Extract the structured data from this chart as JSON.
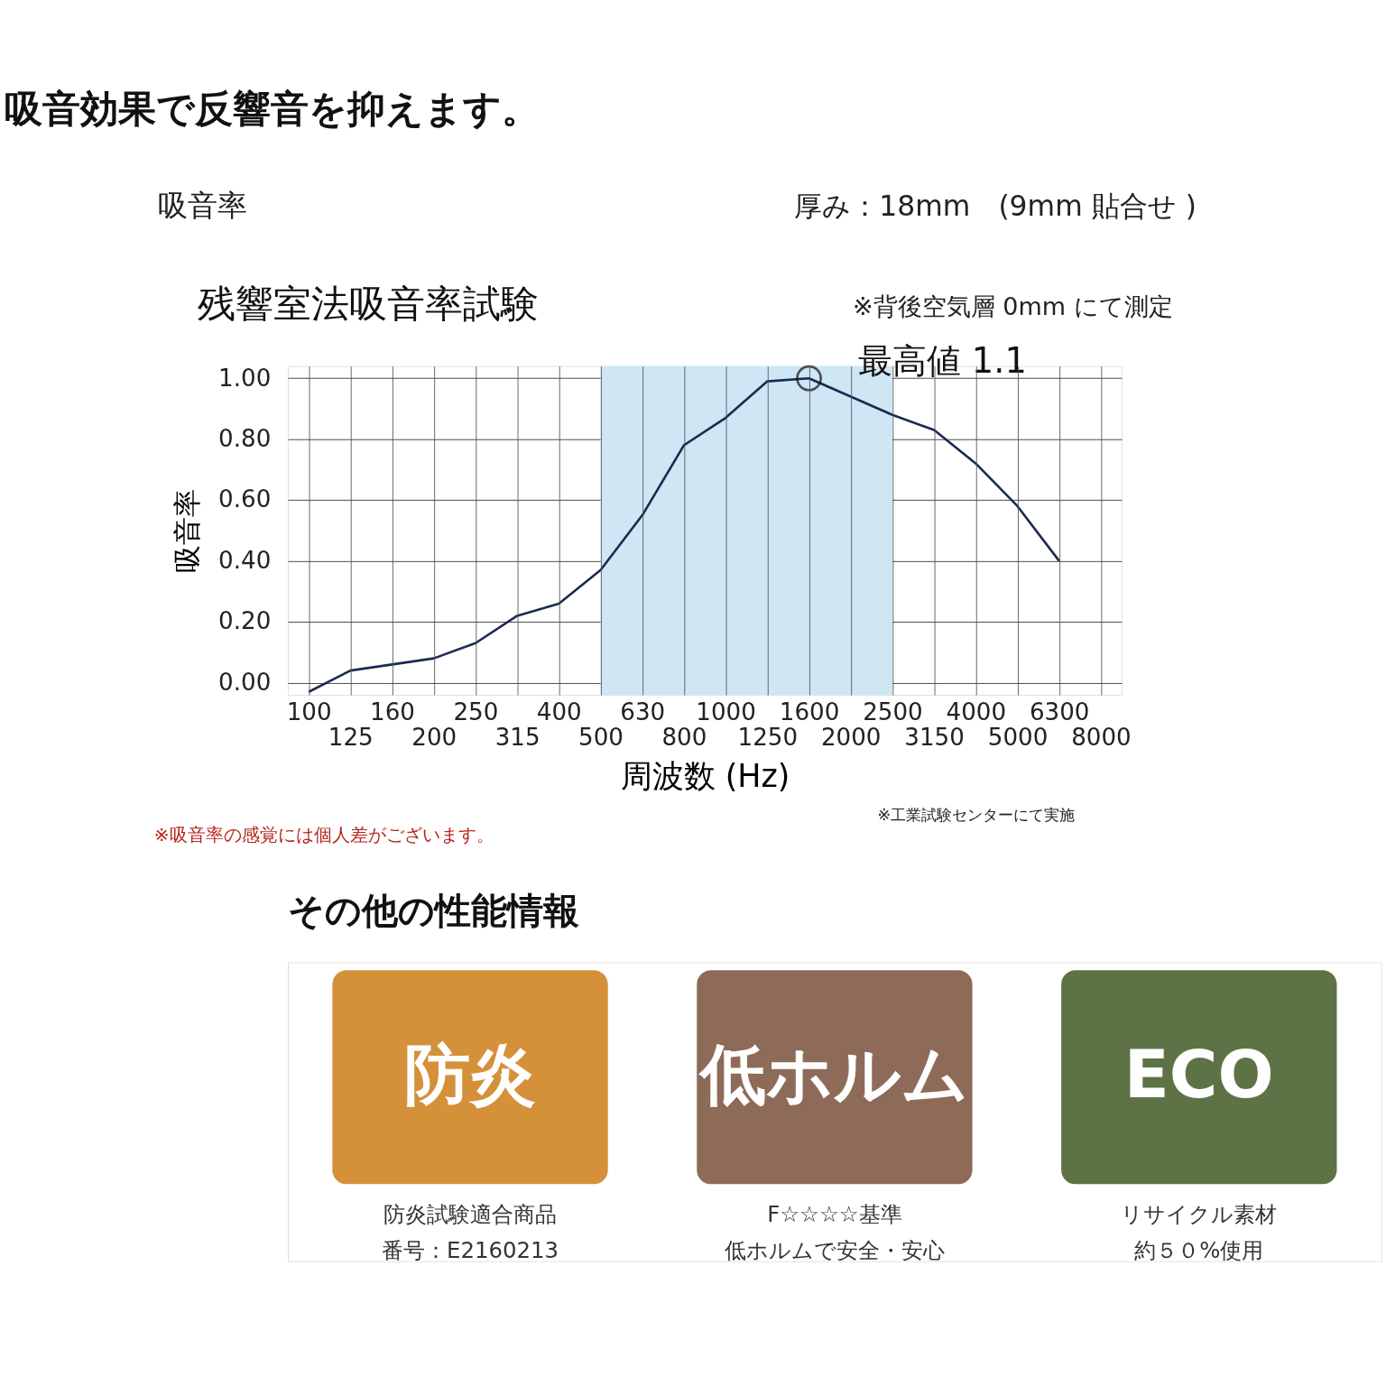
{
  "chart_data": [
    {
      "type": "line",
      "title": "吸音効果で反響音を抑えます。",
      "subtitle": "残響室法吸音率試験",
      "xlabel": "周波数 (Hz)",
      "ylabel": "吸音率",
      "categories": [
        "100",
        "125",
        "160",
        "200",
        "250",
        "315",
        "400",
        "500",
        "630",
        "800",
        "1000",
        "1250",
        "1600",
        "2000",
        "2500",
        "3150",
        "4000",
        "5000",
        "6300",
        "8000"
      ],
      "series": [
        {
          "color": "#1b2a52",
          "values": [
            -0.03,
            0.04,
            0.06,
            0.08,
            0.13,
            0.22,
            0.26,
            0.37,
            0.55,
            0.78,
            0.87,
            0.99,
            1.0,
            0.94,
            0.88,
            0.83,
            0.72,
            0.58,
            0.4,
            null
          ]
        }
      ],
      "ylim": [
        -0.04,
        1.04
      ],
      "yticks": [
        {
          "value": 0,
          "label": "0.00"
        },
        {
          "value": 0.2,
          "label": "0.20"
        },
        {
          "value": 0.4,
          "label": "0.40"
        },
        {
          "value": 0.6,
          "label": "0.60"
        },
        {
          "value": 0.8,
          "label": "0.80"
        },
        {
          "value": 1,
          "label": "1.00"
        }
      ],
      "bands": [
        {
          "axis": "x",
          "from": "500",
          "to": "2500",
          "color": "#cfe6f5"
        }
      ],
      "grid": true,
      "marker": "none",
      "line_style": "solid",
      "annotations": [
        "吸音率",
        "厚み：18mm　(9mm 貼合せ )",
        "※背後空気層 0mm にて測定",
        {
          "text": "最高値 1.1",
          "x": "1600",
          "y": 1.0
        },
        "※工業試験センターにて実施",
        "※吸音率の感覚には個人差がございます。"
      ]
    },
    {
      "type": "other",
      "title": "その他の性能情報",
      "categories": [
        "防炎",
        "低ホルム",
        "ECO"
      ],
      "colors": [
        "#d4913a",
        "#8e6b58",
        "#5e7345"
      ],
      "annotations": [
        "防炎試験適合商品",
        "番号：E2160213",
        "F☆☆☆☆基準",
        "低ホルムで安全・安心",
        "リサイクル素材",
        "約５０%使用"
      ]
    }
  ]
}
